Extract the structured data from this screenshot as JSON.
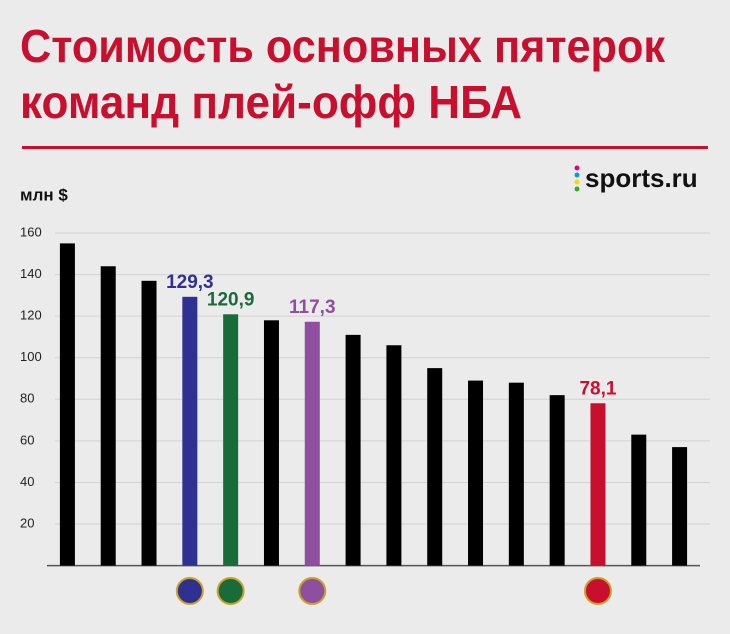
{
  "chart_data": {
    "type": "bar",
    "title": [
      "Стоимость основных пятерок",
      "команд плей-офф НБА"
    ],
    "brand": "sports.ru",
    "y_label": "млн $",
    "values": [
      155,
      144,
      137,
      129.3,
      120.9,
      118,
      117.3,
      111,
      106,
      95,
      89,
      88,
      82,
      78.1,
      63,
      57
    ],
    "value_labels": [
      null,
      null,
      null,
      "129,3",
      "120,9",
      null,
      "117,3",
      null,
      null,
      null,
      null,
      null,
      null,
      "78,1",
      null,
      null
    ],
    "colors": [
      "#000000",
      "#000000",
      "#000000",
      "#2e3192",
      "#1a6b3a",
      "#000000",
      "#8e4fa0",
      "#000000",
      "#000000",
      "#000000",
      "#000000",
      "#000000",
      "#000000",
      "#c8102e",
      "#000000",
      "#000000"
    ],
    "ylim": [
      0,
      160
    ],
    "yticks": [
      20,
      40,
      60,
      80,
      100,
      120,
      140,
      160
    ],
    "grid": true
  }
}
